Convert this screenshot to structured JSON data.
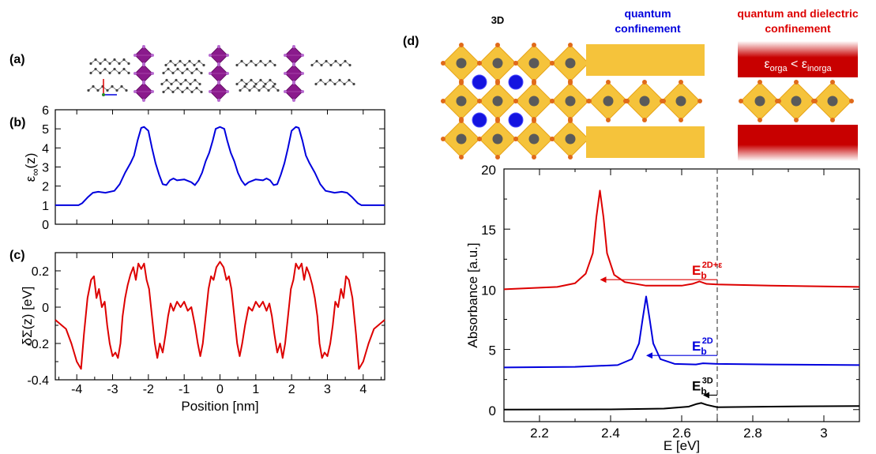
{
  "panels": {
    "a": "(a)",
    "b": "(b)",
    "c": "(c)",
    "d": "(d)"
  },
  "structure_titles": {
    "bulk": "3D",
    "qc_line1": "quantum",
    "qc_line2": "confinement",
    "qdc_line1": "quantum and dielectric",
    "qdc_line2": "confinement",
    "eps_sym": "ε",
    "orga": "orga",
    "lt": " < ",
    "inorga": "inorga"
  },
  "colors": {
    "blue": "#0000dd",
    "red": "#dd0000",
    "black": "#000000",
    "octa": "#f5c33b",
    "octa_edge": "#e8a41a",
    "dark_red": "#c80000",
    "metal": "#5a5a5a",
    "halide": "#e06a1a",
    "cation": "#1414e0",
    "purple": "#8a1a8c"
  },
  "chart_data": [
    {
      "id": "b",
      "type": "line",
      "xlim": [
        -4.6,
        4.6
      ],
      "ylim": [
        0,
        6
      ],
      "yticks": [
        "0",
        "1",
        "2",
        "3",
        "4",
        "5",
        "6"
      ],
      "ylabel_main": "ε",
      "ylabel_sub": "∞",
      "ylabel_suffix": "(z)",
      "color": "#0000dd",
      "series": [
        {
          "x": [
            -4.6,
            -3.95,
            -3.85,
            -3.7,
            -3.55,
            -3.4,
            -3.2,
            -2.95,
            -2.8,
            -2.65,
            -2.5,
            -2.4,
            -2.3,
            -2.2,
            -2.12,
            -2.0,
            -1.9,
            -1.8,
            -1.7,
            -1.6,
            -1.5,
            -1.4,
            -1.3,
            -1.2,
            -1.0,
            -0.8,
            -0.7,
            -0.6,
            -0.5,
            -0.4,
            -0.3,
            -0.2,
            -0.12,
            0.0,
            0.12,
            0.2,
            0.3,
            0.4,
            0.5,
            0.6,
            0.7,
            0.8,
            1.0,
            1.2,
            1.3,
            1.4,
            1.5,
            1.6,
            1.7,
            1.8,
            1.9,
            2.0,
            2.12,
            2.2,
            2.3,
            2.4,
            2.5,
            2.65,
            2.8,
            2.95,
            3.2,
            3.4,
            3.55,
            3.7,
            3.85,
            3.95,
            4.6
          ],
          "y": [
            1.0,
            1.0,
            1.1,
            1.4,
            1.65,
            1.7,
            1.65,
            1.75,
            2.1,
            2.7,
            3.2,
            3.6,
            4.4,
            5.05,
            5.1,
            4.9,
            4.0,
            3.2,
            2.6,
            2.1,
            2.05,
            2.3,
            2.4,
            2.3,
            2.35,
            2.2,
            2.05,
            2.3,
            2.7,
            3.3,
            3.75,
            4.4,
            5.0,
            5.1,
            5.0,
            4.4,
            3.75,
            3.3,
            2.7,
            2.3,
            2.05,
            2.2,
            2.35,
            2.3,
            2.4,
            2.3,
            2.05,
            2.1,
            2.6,
            3.2,
            4.0,
            4.9,
            5.1,
            5.05,
            4.4,
            3.6,
            3.2,
            2.7,
            2.1,
            1.75,
            1.65,
            1.7,
            1.65,
            1.4,
            1.1,
            1.0,
            1.0
          ]
        }
      ]
    },
    {
      "id": "c",
      "type": "line",
      "xlim": [
        -4.6,
        4.6
      ],
      "ylim": [
        -0.4,
        0.3
      ],
      "yticks": [
        "-0.4",
        "-0.2",
        "0",
        "0.2"
      ],
      "ytick_values": [
        -0.4,
        -0.2,
        0,
        0.2
      ],
      "xticks": [
        "-4",
        "-3",
        "-2",
        "-1",
        "0",
        "1",
        "2",
        "3",
        "4"
      ],
      "xtick_values": [
        -4,
        -3,
        -2,
        -1,
        0,
        1,
        2,
        3,
        4
      ],
      "xlabel": "Position [nm]",
      "ylabel": "δΣ(z) [eV]",
      "color": "#dd0000",
      "series": [
        {
          "x": [
            -4.6,
            -4.3,
            -4.15,
            -4.0,
            -3.88,
            -3.8,
            -3.7,
            -3.6,
            -3.52,
            -3.45,
            -3.38,
            -3.3,
            -3.22,
            -3.15,
            -3.08,
            -3.0,
            -2.92,
            -2.85,
            -2.78,
            -2.72,
            -2.65,
            -2.58,
            -2.5,
            -2.42,
            -2.35,
            -2.28,
            -2.2,
            -2.12,
            -2.05,
            -1.98,
            -1.9,
            -1.82,
            -1.75,
            -1.68,
            -1.6,
            -1.52,
            -1.45,
            -1.38,
            -1.3,
            -1.2,
            -1.1,
            -1.0,
            -0.9,
            -0.8,
            -0.7,
            -0.62,
            -0.55,
            -0.48,
            -0.4,
            -0.32,
            -0.25,
            -0.18,
            -0.1,
            0.0,
            0.1,
            0.18,
            0.25,
            0.32,
            0.4,
            0.48,
            0.55,
            0.62,
            0.7,
            0.8,
            0.9,
            1.0,
            1.1,
            1.2,
            1.3,
            1.38,
            1.45,
            1.52,
            1.6,
            1.68,
            1.75,
            1.82,
            1.9,
            1.98,
            2.05,
            2.12,
            2.2,
            2.28,
            2.35,
            2.42,
            2.5,
            2.58,
            2.65,
            2.72,
            2.78,
            2.85,
            2.92,
            3.0,
            3.08,
            3.15,
            3.22,
            3.3,
            3.38,
            3.45,
            3.52,
            3.6,
            3.7,
            3.8,
            3.88,
            4.0,
            4.15,
            4.3,
            4.6
          ],
          "y": [
            -0.07,
            -0.12,
            -0.2,
            -0.3,
            -0.34,
            -0.15,
            0.05,
            0.15,
            0.17,
            0.05,
            0.1,
            0.0,
            0.03,
            -0.1,
            -0.2,
            -0.27,
            -0.25,
            -0.28,
            -0.2,
            -0.05,
            0.05,
            0.12,
            0.18,
            0.22,
            0.15,
            0.24,
            0.21,
            0.24,
            0.15,
            0.1,
            -0.05,
            -0.2,
            -0.28,
            -0.2,
            -0.25,
            -0.15,
            -0.05,
            0.02,
            -0.02,
            0.03,
            0.0,
            0.03,
            -0.02,
            0.0,
            -0.1,
            -0.2,
            -0.27,
            -0.2,
            -0.05,
            0.1,
            0.17,
            0.15,
            0.22,
            0.25,
            0.22,
            0.15,
            0.17,
            0.1,
            -0.05,
            -0.2,
            -0.27,
            -0.2,
            -0.1,
            0.0,
            -0.02,
            0.03,
            0.0,
            0.03,
            -0.02,
            0.02,
            -0.05,
            -0.15,
            -0.25,
            -0.2,
            -0.28,
            -0.2,
            -0.05,
            0.1,
            0.15,
            0.24,
            0.21,
            0.24,
            0.15,
            0.22,
            0.18,
            0.12,
            0.05,
            -0.05,
            -0.2,
            -0.28,
            -0.25,
            -0.27,
            -0.2,
            -0.1,
            0.03,
            0.0,
            0.1,
            0.05,
            0.17,
            0.15,
            0.05,
            -0.15,
            -0.34,
            -0.3,
            -0.2,
            -0.12,
            -0.07
          ]
        }
      ]
    },
    {
      "id": "d",
      "type": "line",
      "xlim": [
        2.1,
        3.1
      ],
      "ylim": [
        -1,
        20
      ],
      "xticks": [
        "2.2",
        "2.4",
        "2.6",
        "2.8",
        "3"
      ],
      "xtick_values": [
        2.2,
        2.4,
        2.6,
        2.8,
        3.0
      ],
      "yticks": [
        "0",
        "5",
        "10",
        "15",
        "20"
      ],
      "ytick_values": [
        0,
        5,
        10,
        15,
        20
      ],
      "xlabel": "E [eV]",
      "ylabel": "Absorbance [a.u.]",
      "vline_x": 2.7,
      "series": [
        {
          "color": "#dd0000",
          "x": [
            2.1,
            2.25,
            2.3,
            2.33,
            2.35,
            2.36,
            2.37,
            2.38,
            2.39,
            2.41,
            2.44,
            2.5,
            2.6,
            2.63,
            2.65,
            2.67,
            2.7,
            2.85,
            3.1
          ],
          "y": [
            10.0,
            10.2,
            10.5,
            11.3,
            13.0,
            16.0,
            18.2,
            16.0,
            13.0,
            11.2,
            10.6,
            10.3,
            10.3,
            10.45,
            10.65,
            10.45,
            10.4,
            10.3,
            10.2
          ],
          "label_main": "E",
          "label_sub": "b",
          "label_sup": "2D+ε",
          "arrow": [
            2.7,
            2.37,
            10.8
          ]
        },
        {
          "color": "#0000dd",
          "x": [
            2.1,
            2.3,
            2.42,
            2.46,
            2.48,
            2.49,
            2.5,
            2.51,
            2.52,
            2.54,
            2.58,
            2.64,
            2.66,
            2.7,
            2.85,
            3.1
          ],
          "y": [
            3.5,
            3.55,
            3.7,
            4.2,
            5.5,
            7.5,
            9.4,
            7.5,
            5.5,
            4.2,
            3.8,
            3.75,
            3.85,
            3.8,
            3.75,
            3.7
          ],
          "label_main": "E",
          "label_sub": "b",
          "label_sup": "2D",
          "arrow": [
            2.7,
            2.5,
            4.5
          ]
        },
        {
          "color": "#000000",
          "x": [
            2.1,
            2.4,
            2.55,
            2.62,
            2.64,
            2.655,
            2.67,
            2.7,
            2.85,
            3.1
          ],
          "y": [
            0.0,
            0.02,
            0.08,
            0.25,
            0.45,
            0.55,
            0.4,
            0.2,
            0.25,
            0.3
          ],
          "label_main": "E",
          "label_sub": "b",
          "label_sup": "3D",
          "arrow": [
            2.7,
            2.66,
            1.2
          ]
        }
      ]
    }
  ]
}
